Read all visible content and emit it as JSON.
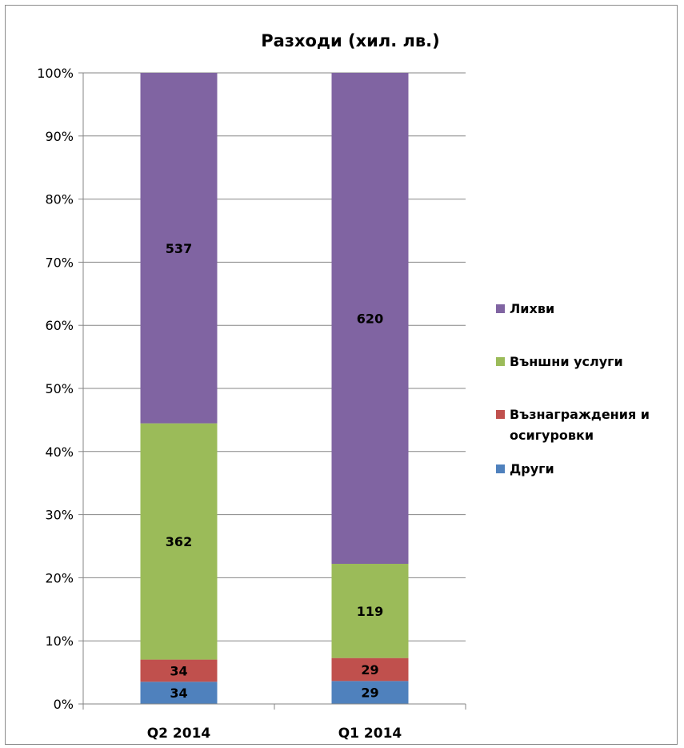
{
  "chart_data": {
    "type": "bar",
    "stacked": "percent",
    "title": "Разходи (хил. лв.)",
    "categories": [
      "Q2 2014",
      "Q1 2014"
    ],
    "series": [
      {
        "name": "Други",
        "values": [
          34,
          29
        ],
        "color": "#4f81bd"
      },
      {
        "name": "Възнаграждения и осигуровки",
        "values": [
          34,
          29
        ],
        "color": "#c0504d"
      },
      {
        "name": "Външни услуги",
        "values": [
          362,
          119
        ],
        "color": "#9bbb59"
      },
      {
        "name": "Лихви",
        "values": [
          537,
          620
        ],
        "color": "#8064a2"
      }
    ],
    "y_ticks": [
      "0%",
      "10%",
      "20%",
      "30%",
      "40%",
      "50%",
      "60%",
      "70%",
      "80%",
      "90%",
      "100%"
    ],
    "ylim": [
      0,
      100
    ],
    "grid": true,
    "legend": "right",
    "legend_order": [
      "Лихви",
      "Външни услуги",
      "Възнаграждения и осигуровки",
      "Други"
    ]
  }
}
